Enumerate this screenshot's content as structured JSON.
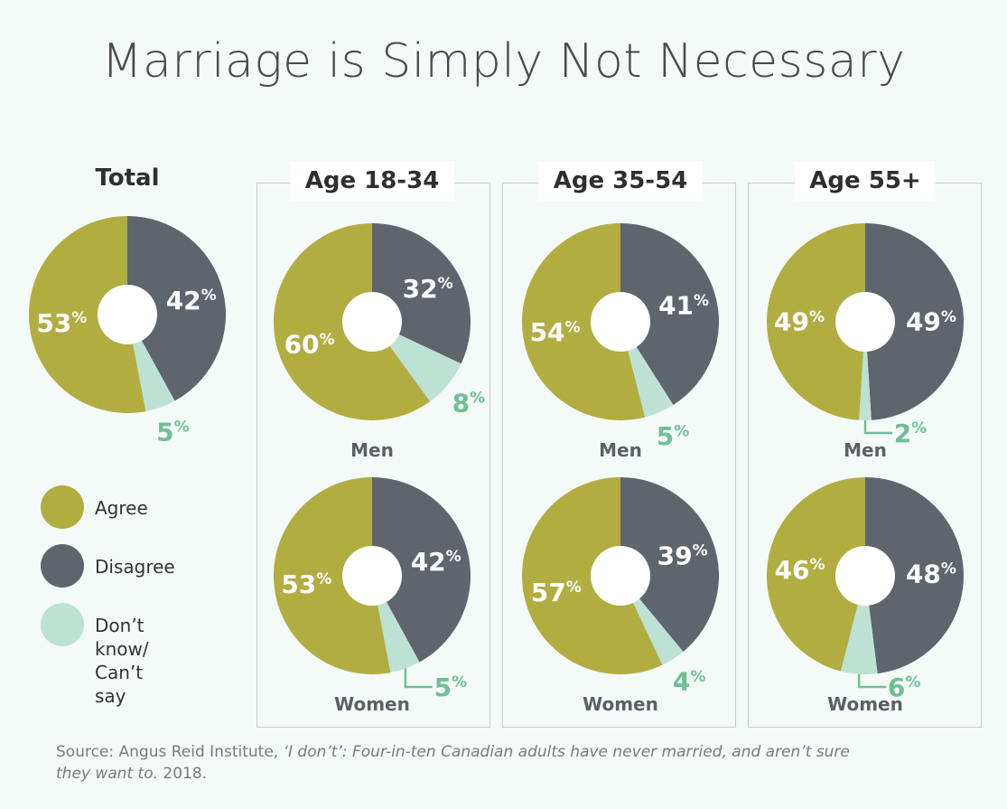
{
  "title": "Marriage is Simply Not Necessary",
  "colors": {
    "agree": "#b2ad41",
    "disagree": "#5f656d",
    "dont_know": "#bde2d3",
    "dont_know_label": "#6fbf96",
    "sub_label": "#5b5f66"
  },
  "legend": [
    {
      "key": "agree",
      "label": "Agree"
    },
    {
      "key": "disagree",
      "label": "Disagree"
    },
    {
      "key": "dont_know",
      "label": "Don’t know/\nCan’t say"
    }
  ],
  "source": {
    "prefix": "Source: Angus Reid Institute, ",
    "italic": "‘I don’t’: Four-in-ten Canadian adults have never married, and aren’t sure they want to.",
    "suffix": " 2018."
  },
  "chart_data": {
    "type": "pie",
    "title": "Marriage is Simply Not Necessary",
    "categories": [
      "Agree",
      "Disagree",
      "Don’t know/Can’t say"
    ],
    "total": {
      "label": "Total",
      "values": [
        53,
        42,
        5
      ]
    },
    "groups": [
      {
        "label": "Age 18-34",
        "men": {
          "label": "Men",
          "values": [
            60,
            32,
            8
          ]
        },
        "women": {
          "label": "Women",
          "values": [
            53,
            42,
            5
          ]
        }
      },
      {
        "label": "Age 35-54",
        "men": {
          "label": "Men",
          "values": [
            54,
            41,
            5
          ]
        },
        "women": {
          "label": "Women",
          "values": [
            57,
            39,
            4
          ]
        }
      },
      {
        "label": "Age 55+",
        "men": {
          "label": "Men",
          "values": [
            49,
            49,
            2
          ]
        },
        "women": {
          "label": "Women",
          "values": [
            46,
            48,
            6
          ]
        }
      }
    ],
    "unit": "%"
  }
}
